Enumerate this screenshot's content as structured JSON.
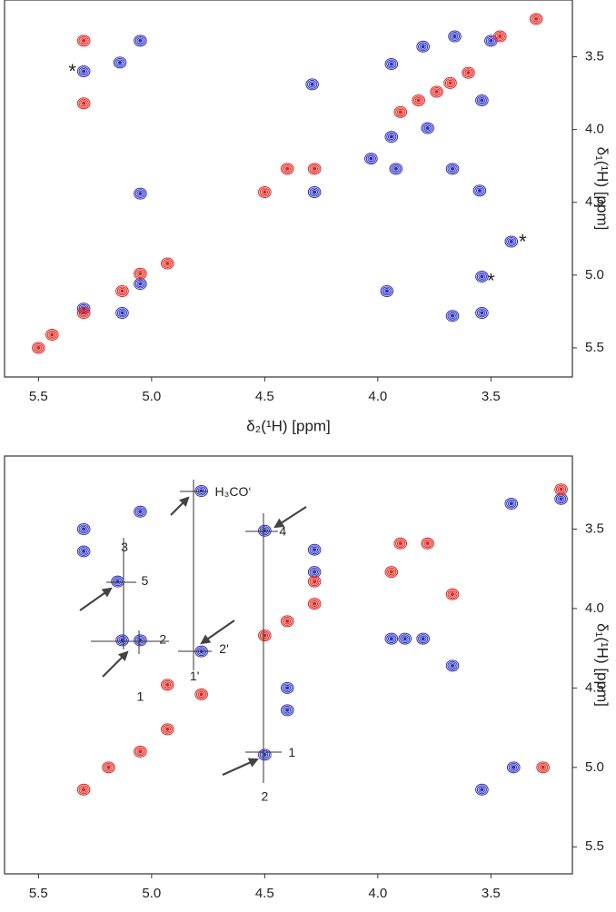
{
  "chart_data": [
    {
      "type": "scatter",
      "xlabel": "δ₂(¹H) [ppm]",
      "ylabel": "δ₁(¹H) [ppm]",
      "xlim": [
        5.65,
        3.14
      ],
      "ylim": [
        5.7,
        3.11
      ],
      "xticks": [
        5.5,
        {
          "value": 5,
          "label": "5.0"
        },
        4.5,
        {
          "value": 4,
          "label": "4.0"
        },
        3.5
      ],
      "yticks": [
        3.5,
        {
          "value": 4,
          "label": "4.0"
        },
        4.5,
        {
          "value": 5,
          "label": "5.0"
        },
        5.5
      ],
      "series": [
        {
          "color": "#2a2fbf",
          "x": [
            5.3,
            5.3,
            5.14,
            5.05,
            5.05,
            5.13,
            5.05,
            4.29,
            4.28,
            3.94,
            3.8,
            3.66,
            3.54,
            3.5,
            3.94,
            3.78,
            3.92,
            3.67,
            3.55,
            3.41,
            3.54,
            3.67,
            3.96,
            3.54,
            4.03
          ],
          "y": [
            3.6,
            5.23,
            3.54,
            3.39,
            4.44,
            5.26,
            5.06,
            3.69,
            4.43,
            3.55,
            3.43,
            3.36,
            3.8,
            3.39,
            4.05,
            3.99,
            4.27,
            4.27,
            4.42,
            4.77,
            5.26,
            5.28,
            5.11,
            5.01,
            4.2
          ]
        },
        {
          "color": "#e0201b",
          "x": [
            5.3,
            5.3,
            5.3,
            5.13,
            5.05,
            4.93,
            5.44,
            5.5,
            4.5,
            4.4,
            4.28,
            3.9,
            3.74,
            3.6,
            3.46,
            3.3,
            3.82,
            3.68
          ],
          "y": [
            3.39,
            3.82,
            5.26,
            5.11,
            4.99,
            4.92,
            5.41,
            5.5,
            4.43,
            4.27,
            4.27,
            3.88,
            3.74,
            3.61,
            3.36,
            3.24,
            3.8,
            3.68
          ]
        }
      ],
      "annotations": [
        {
          "text": "*",
          "x": 5.35,
          "y": 3.61
        },
        {
          "text": "*",
          "x": 3.36,
          "y": 4.78
        },
        {
          "text": "*",
          "x": 3.5,
          "y": 5.05
        }
      ]
    },
    {
      "type": "scatter",
      "xlabel": "δ₂(¹H) [ppm]",
      "ylabel": "δ₁(¹H) [ppm]",
      "xlim": [
        5.65,
        3.14
      ],
      "ylim": [
        5.67,
        3.04
      ],
      "xticks": [
        5.5,
        {
          "value": 5,
          "label": "5.0"
        },
        4.5,
        {
          "value": 4,
          "label": "4.0"
        },
        3.5
      ],
      "yticks": [
        3.5,
        {
          "value": 4,
          "label": "4.0"
        },
        4.5,
        {
          "value": 5,
          "label": "5.0"
        },
        5.5
      ],
      "series": [
        {
          "color": "#2a2fbf",
          "x": [
            5.3,
            5.3,
            5.05,
            5.15,
            5.13,
            5.05,
            4.78,
            4.78,
            4.5,
            4.5,
            4.4,
            4.4,
            4.28,
            4.28,
            3.94,
            3.88,
            3.8,
            3.67,
            3.54,
            3.41,
            3.19,
            3.4
          ],
          "y": [
            3.5,
            3.64,
            3.39,
            3.83,
            4.2,
            4.2,
            3.26,
            4.27,
            3.51,
            4.92,
            4.5,
            4.64,
            3.63,
            3.77,
            4.19,
            4.19,
            4.19,
            4.36,
            5.14,
            3.34,
            3.31,
            5.0
          ]
        },
        {
          "color": "#e0201b",
          "x": [
            4.78,
            4.93,
            5.19,
            5.05,
            4.93,
            5.3,
            4.5,
            4.4,
            4.28,
            4.28,
            3.94,
            3.9,
            3.78,
            3.67,
            3.27,
            3.19
          ],
          "y": [
            4.54,
            4.48,
            5.0,
            4.9,
            4.76,
            5.14,
            4.17,
            4.08,
            3.97,
            3.83,
            3.77,
            3.59,
            3.59,
            3.91,
            5.0,
            3.25
          ]
        }
      ],
      "annotations": [
        {
          "text": "H₃CO‘",
          "x": 4.64,
          "y": 3.27
        },
        {
          "text": "3",
          "x": 5.12,
          "y": 3.62
        },
        {
          "text": "5",
          "x": 5.03,
          "y": 3.83
        },
        {
          "text": "2",
          "x": 4.95,
          "y": 4.2
        },
        {
          "text": "1",
          "x": 5.05,
          "y": 4.56
        },
        {
          "text": "2'",
          "x": 4.68,
          "y": 4.26
        },
        {
          "text": "1'",
          "x": 4.81,
          "y": 4.43
        },
        {
          "text": "4",
          "x": 4.42,
          "y": 3.52
        },
        {
          "text": "1",
          "x": 4.38,
          "y": 4.91
        },
        {
          "text": "2",
          "x": 4.5,
          "y": 5.19
        }
      ]
    }
  ]
}
